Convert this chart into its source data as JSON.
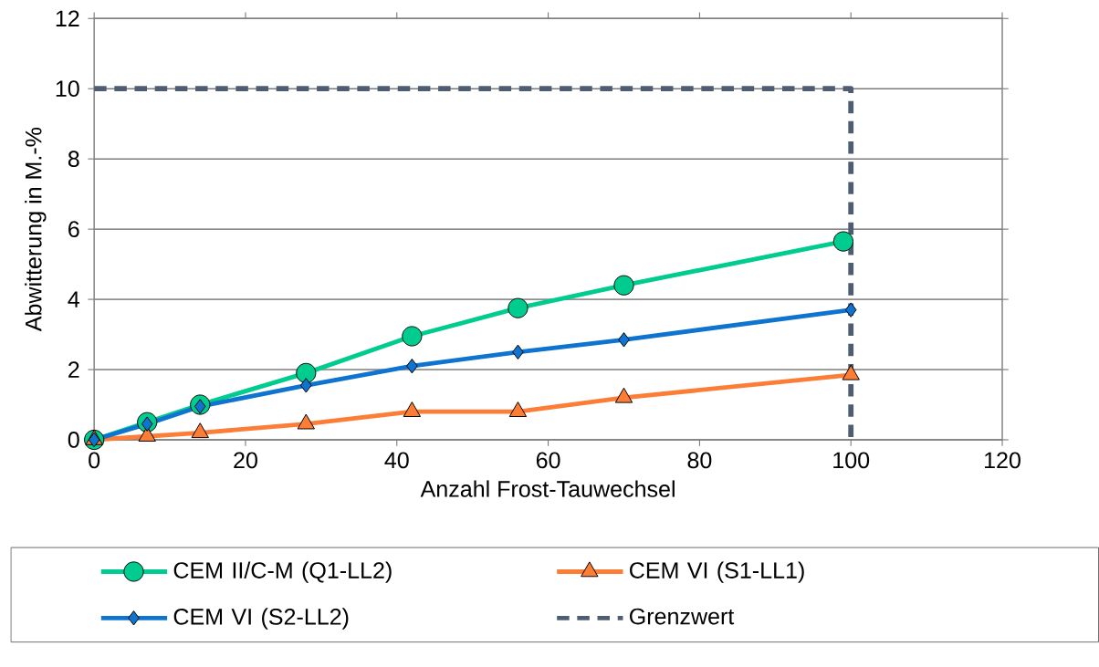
{
  "chart_data": {
    "type": "line",
    "xlabel": "Anzahl Frost-Tauwechsel",
    "ylabel": "Abwitterung in M.-%",
    "xlim": [
      0,
      120
    ],
    "xticks": [
      0,
      20,
      40,
      60,
      80,
      100,
      120
    ],
    "ylim": [
      0,
      12
    ],
    "yticks": [
      0,
      2,
      4,
      6,
      8,
      10,
      12
    ],
    "grid": "y",
    "legend": "bottom",
    "series": [
      {
        "name": "CEM II/C-M (Q1-LL2)",
        "color": "#00cc8f",
        "marker": "circle",
        "line_style": "solid",
        "x": [
          0,
          7,
          14,
          28,
          42,
          56,
          70,
          99
        ],
        "values": [
          0,
          0.5,
          1.0,
          1.9,
          2.95,
          3.75,
          4.4,
          5.65
        ]
      },
      {
        "name": "CEM VI (S1-LL1)",
        "color": "#fb7d36",
        "marker": "triangle",
        "line_style": "solid",
        "x": [
          0,
          7,
          14,
          28,
          42,
          56,
          70,
          100
        ],
        "values": [
          0,
          0.1,
          0.2,
          0.45,
          0.8,
          0.8,
          1.2,
          1.85
        ]
      },
      {
        "name": "CEM VI (S2-LL2)",
        "color": "#0f73d0",
        "marker": "diamond",
        "line_style": "solid",
        "x": [
          0,
          7,
          14,
          28,
          42,
          56,
          70,
          100
        ],
        "values": [
          0,
          0.45,
          0.95,
          1.55,
          2.1,
          2.5,
          2.85,
          3.7
        ]
      },
      {
        "name": "Grenzwert",
        "color": "#4f5d73",
        "marker": "none",
        "line_style": "dashed",
        "x": [
          0,
          100,
          100
        ],
        "values": [
          10,
          10,
          0
        ]
      }
    ]
  }
}
